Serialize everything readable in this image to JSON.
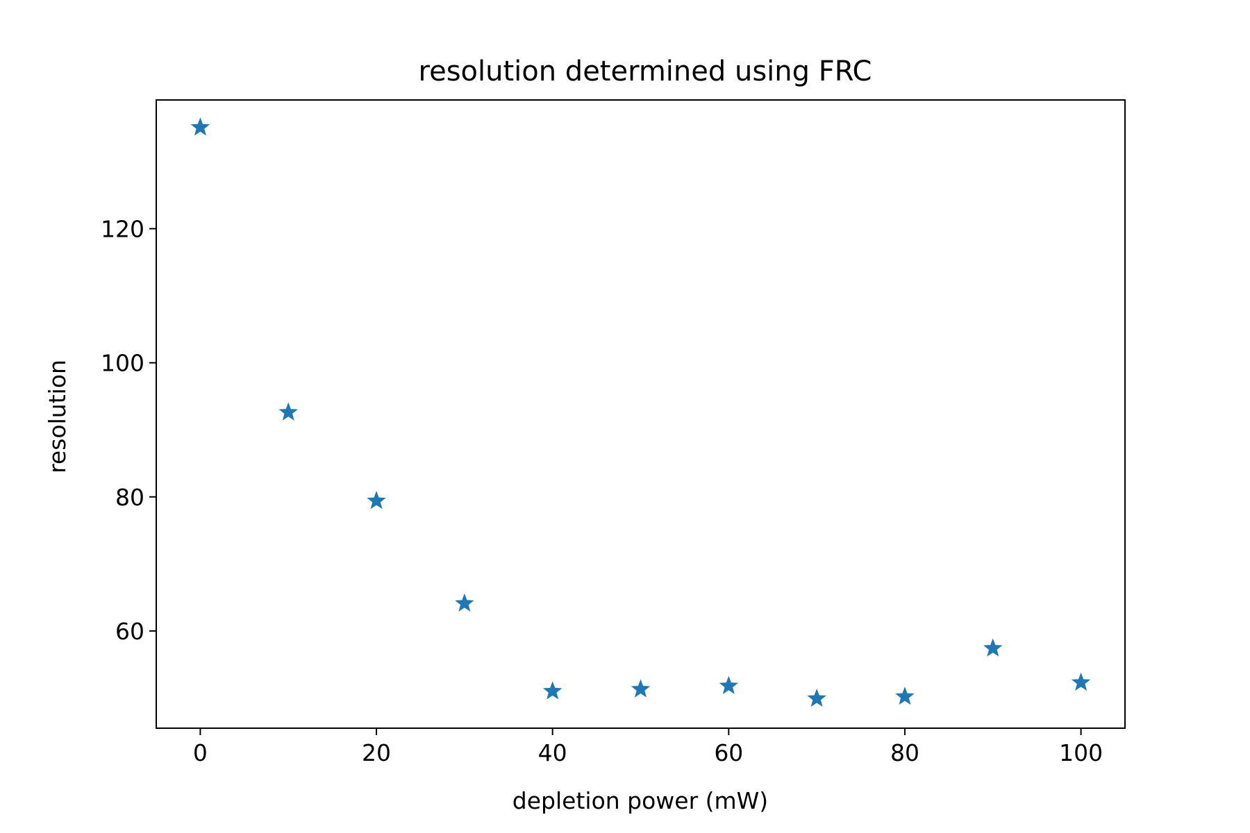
{
  "chart_data": {
    "type": "scatter",
    "title": "resolution determined using FRC",
    "xlabel": "depletion power (mW)",
    "ylabel": "resolution",
    "xlim": [
      -5,
      105
    ],
    "ylim": [
      45.5,
      139.2
    ],
    "xticks": [
      0,
      20,
      40,
      60,
      80,
      100
    ],
    "yticks": [
      60,
      80,
      100,
      120
    ],
    "grid": false,
    "marker": "star",
    "color": "#1f77b4",
    "x": [
      0,
      10,
      20,
      30,
      40,
      50,
      60,
      70,
      80,
      90,
      100
    ],
    "y": [
      135.1,
      92.6,
      79.4,
      64.1,
      51.0,
      51.3,
      51.8,
      49.9,
      50.2,
      57.4,
      52.3
    ]
  }
}
